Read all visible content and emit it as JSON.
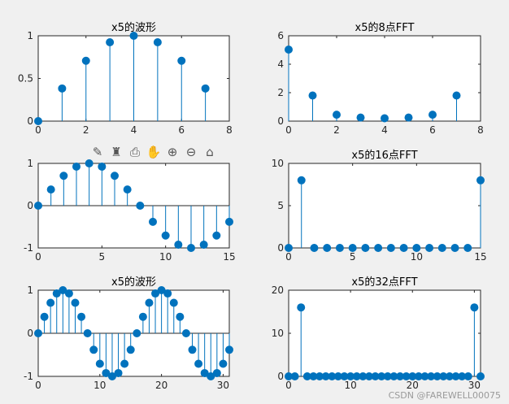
{
  "toolbar": {
    "items": [
      {
        "name": "brush-data-icon",
        "glyph": "✎"
      },
      {
        "name": "data-tips-icon",
        "glyph": "♜"
      },
      {
        "name": "export-icon",
        "glyph": "⎙"
      },
      {
        "name": "pan-hand-icon",
        "glyph": "✋"
      },
      {
        "name": "zoom-in-icon",
        "glyph": "⊕"
      },
      {
        "name": "zoom-out-icon",
        "glyph": "⊖"
      },
      {
        "name": "home-icon",
        "glyph": "⌂"
      }
    ]
  },
  "watermark": "CSDN @FAREWELL00075",
  "colors": {
    "stem": "#0072bd",
    "frame": "#262626",
    "background": "#f0f0f0"
  },
  "chart_data": [
    {
      "type": "stem",
      "title": "x5的波形",
      "x": [
        0,
        1,
        2,
        3,
        4,
        5,
        6,
        7
      ],
      "y": [
        0,
        0.3827,
        0.7071,
        0.9239,
        1,
        0.9239,
        0.7071,
        0.3827
      ],
      "xlim": [
        0,
        8
      ],
      "ylim": [
        0,
        1
      ],
      "xticks": [
        0,
        2,
        4,
        6,
        8
      ],
      "xticklabels": [
        "0",
        "2",
        "4",
        "6",
        "8"
      ],
      "yticks": [
        0,
        0.5,
        1
      ],
      "yticklabels": [
        "0",
        "0.5",
        "1"
      ]
    },
    {
      "type": "stem",
      "title": "x5的8点FFT",
      "x": [
        0,
        1,
        2,
        3,
        4,
        5,
        6,
        7
      ],
      "y": [
        5.03,
        1.8,
        0.45,
        0.25,
        0.2,
        0.25,
        0.45,
        1.8
      ],
      "xlim": [
        0,
        8
      ],
      "ylim": [
        0,
        6
      ],
      "xticks": [
        0,
        2,
        4,
        6,
        8
      ],
      "xticklabels": [
        "0",
        "2",
        "4",
        "6",
        "8"
      ],
      "yticks": [
        0,
        2,
        4,
        6
      ],
      "yticklabels": [
        "0",
        "2",
        "4",
        "6"
      ]
    },
    {
      "type": "stem",
      "title": "",
      "x": [
        0,
        1,
        2,
        3,
        4,
        5,
        6,
        7,
        8,
        9,
        10,
        11,
        12,
        13,
        14,
        15
      ],
      "y": [
        0,
        0.3827,
        0.7071,
        0.9239,
        1,
        0.9239,
        0.7071,
        0.3827,
        0,
        -0.3827,
        -0.7071,
        -0.9239,
        -1,
        -0.9239,
        -0.7071,
        -0.3827
      ],
      "xlim": [
        0,
        15
      ],
      "ylim": [
        -1,
        1
      ],
      "xticks": [
        0,
        5,
        10,
        15
      ],
      "xticklabels": [
        "0",
        "5",
        "10",
        "15"
      ],
      "yticks": [
        -1,
        0,
        1
      ],
      "yticklabels": [
        "-1",
        "0",
        "1"
      ]
    },
    {
      "type": "stem",
      "title": "x5的16点FFT",
      "x": [
        0,
        1,
        2,
        3,
        4,
        5,
        6,
        7,
        8,
        9,
        10,
        11,
        12,
        13,
        14,
        15
      ],
      "y": [
        0,
        8,
        0,
        0,
        0,
        0,
        0,
        0,
        0,
        0,
        0,
        0,
        0,
        0,
        0,
        8
      ],
      "xlim": [
        0,
        15
      ],
      "ylim": [
        0,
        10
      ],
      "xticks": [
        0,
        5,
        10,
        15
      ],
      "xticklabels": [
        "0",
        "5",
        "10",
        "15"
      ],
      "yticks": [
        0,
        5,
        10
      ],
      "yticklabels": [
        "0",
        "5",
        "10"
      ]
    },
    {
      "type": "stem",
      "title": "x5的波形",
      "x": [
        0,
        1,
        2,
        3,
        4,
        5,
        6,
        7,
        8,
        9,
        10,
        11,
        12,
        13,
        14,
        15,
        16,
        17,
        18,
        19,
        20,
        21,
        22,
        23,
        24,
        25,
        26,
        27,
        28,
        29,
        30,
        31
      ],
      "y": [
        0,
        0.3827,
        0.7071,
        0.9239,
        1,
        0.9239,
        0.7071,
        0.3827,
        0,
        -0.3827,
        -0.7071,
        -0.9239,
        -1,
        -0.9239,
        -0.7071,
        -0.3827,
        0,
        0.3827,
        0.7071,
        0.9239,
        1,
        0.9239,
        0.7071,
        0.3827,
        0,
        -0.3827,
        -0.7071,
        -0.9239,
        -1,
        -0.9239,
        -0.7071,
        -0.3827
      ],
      "xlim": [
        0,
        31
      ],
      "ylim": [
        -1,
        1
      ],
      "xticks": [
        0,
        10,
        20,
        30
      ],
      "xticklabels": [
        "0",
        "10",
        "20",
        "30"
      ],
      "yticks": [
        -1,
        0,
        1
      ],
      "yticklabels": [
        "-1",
        "0",
        "1"
      ]
    },
    {
      "type": "stem",
      "title": "x5的32点FFT",
      "x": [
        0,
        1,
        2,
        3,
        4,
        5,
        6,
        7,
        8,
        9,
        10,
        11,
        12,
        13,
        14,
        15,
        16,
        17,
        18,
        19,
        20,
        21,
        22,
        23,
        24,
        25,
        26,
        27,
        28,
        29,
        30,
        31
      ],
      "y": [
        0,
        0,
        16,
        0,
        0,
        0,
        0,
        0,
        0,
        0,
        0,
        0,
        0,
        0,
        0,
        0,
        0,
        0,
        0,
        0,
        0,
        0,
        0,
        0,
        0,
        0,
        0,
        0,
        0,
        0,
        16,
        0
      ],
      "xlim": [
        0,
        31
      ],
      "ylim": [
        0,
        20
      ],
      "xticks": [
        0,
        10,
        20,
        30
      ],
      "xticklabels": [
        "0",
        "10",
        "20",
        "30"
      ],
      "yticks": [
        0,
        10,
        20
      ],
      "yticklabels": [
        "0",
        "10",
        "20"
      ]
    }
  ]
}
